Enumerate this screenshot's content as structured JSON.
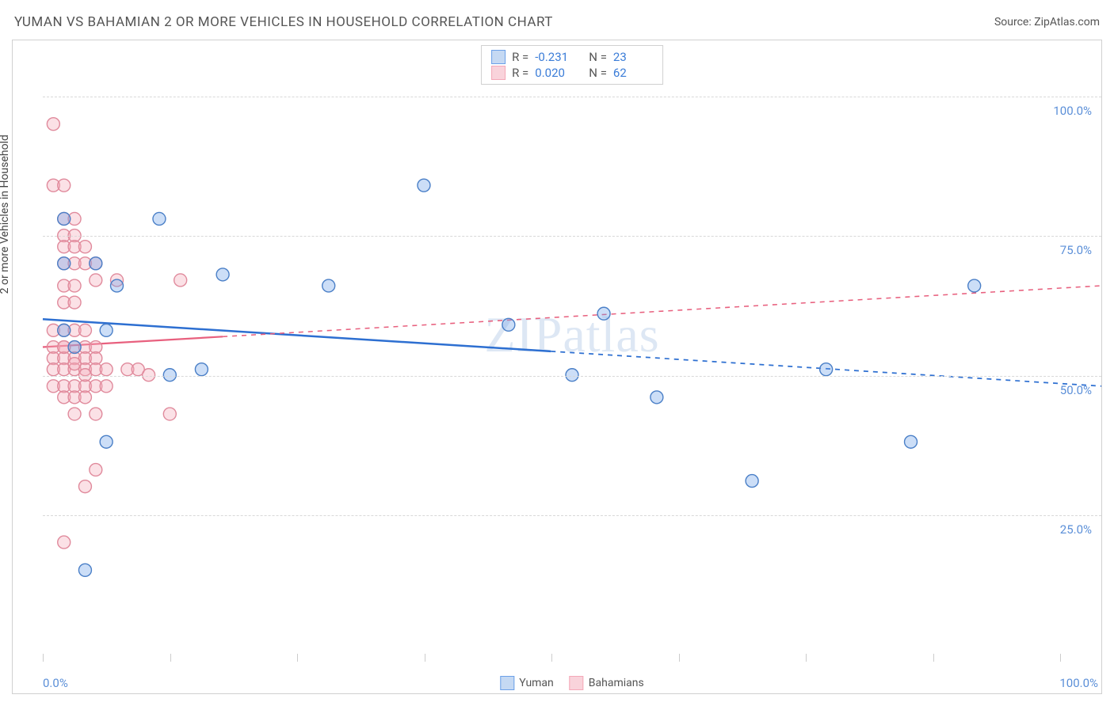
{
  "title": "YUMAN VS BAHAMIAN 2 OR MORE VEHICLES IN HOUSEHOLD CORRELATION CHART",
  "source": "Source: ZipAtlas.com",
  "watermark": "ZIPatlas",
  "y_axis_label": "2 or more Vehicles in Household",
  "chart": {
    "type": "scatter",
    "background_color": "#ffffff",
    "grid_color": "#d8d8d8",
    "border_color": "#d0d0d0",
    "xlim": [
      0,
      100
    ],
    "ylim": [
      0,
      110
    ],
    "x_ticks": [
      0,
      12,
      24,
      36,
      48,
      60,
      72,
      84,
      96
    ],
    "x_tick_labels": {
      "0": "0.0%",
      "100": "100.0%"
    },
    "y_gridlines": [
      25,
      50,
      75,
      100
    ],
    "y_tick_labels": {
      "25": "25.0%",
      "50": "50.0%",
      "75": "75.0%",
      "100": "100.0%"
    },
    "axis_label_color": "#5b8fd8",
    "axis_label_fontsize": 15,
    "marker_radius": 8,
    "marker_stroke_width": 1.4,
    "marker_fill_opacity": 0.35,
    "series": [
      {
        "name": "Yuman",
        "color": "#6ca0e8",
        "stroke": "#4a7fc7",
        "regression": {
          "x1": 0,
          "y1": 60,
          "x2": 100,
          "y2": 48,
          "solid_until": 48,
          "line_color": "#2d6fd1",
          "line_width": 2.5
        },
        "points": [
          [
            2,
            78
          ],
          [
            2,
            70
          ],
          [
            2,
            58
          ],
          [
            5,
            70
          ],
          [
            6,
            38
          ],
          [
            7,
            66
          ],
          [
            11,
            78
          ],
          [
            12,
            50
          ],
          [
            15,
            51
          ],
          [
            17,
            68
          ],
          [
            27,
            66
          ],
          [
            36,
            84
          ],
          [
            44,
            59
          ],
          [
            50,
            50
          ],
          [
            53,
            61
          ],
          [
            58,
            46
          ],
          [
            67,
            31
          ],
          [
            74,
            51
          ],
          [
            82,
            38
          ],
          [
            88,
            66
          ],
          [
            4,
            15
          ],
          [
            6,
            58
          ],
          [
            3,
            55
          ]
        ]
      },
      {
        "name": "Bahamians",
        "color": "#f4a8b8",
        "stroke": "#e08a9c",
        "regression": {
          "x1": 0,
          "y1": 55,
          "x2": 100,
          "y2": 66,
          "solid_until": 17,
          "line_color": "#e8607e",
          "line_width": 2.2
        },
        "points": [
          [
            1,
            95
          ],
          [
            1,
            84
          ],
          [
            2,
            84
          ],
          [
            2,
            78
          ],
          [
            3,
            78
          ],
          [
            2,
            75
          ],
          [
            3,
            75
          ],
          [
            2,
            73
          ],
          [
            3,
            73
          ],
          [
            4,
            73
          ],
          [
            2,
            70
          ],
          [
            3,
            70
          ],
          [
            4,
            70
          ],
          [
            5,
            70
          ],
          [
            2,
            66
          ],
          [
            3,
            66
          ],
          [
            2,
            63
          ],
          [
            3,
            63
          ],
          [
            5,
            67
          ],
          [
            7,
            67
          ],
          [
            13,
            67
          ],
          [
            1,
            58
          ],
          [
            2,
            58
          ],
          [
            3,
            58
          ],
          [
            4,
            58
          ],
          [
            1,
            55
          ],
          [
            2,
            55
          ],
          [
            3,
            55
          ],
          [
            4,
            55
          ],
          [
            5,
            55
          ],
          [
            1,
            53
          ],
          [
            2,
            53
          ],
          [
            3,
            53
          ],
          [
            4,
            53
          ],
          [
            5,
            53
          ],
          [
            1,
            51
          ],
          [
            2,
            51
          ],
          [
            3,
            51
          ],
          [
            4,
            51
          ],
          [
            5,
            51
          ],
          [
            6,
            51
          ],
          [
            8,
            51
          ],
          [
            1,
            48
          ],
          [
            2,
            48
          ],
          [
            3,
            48
          ],
          [
            4,
            48
          ],
          [
            5,
            48
          ],
          [
            6,
            48
          ],
          [
            9,
            51
          ],
          [
            2,
            46
          ],
          [
            3,
            46
          ],
          [
            4,
            46
          ],
          [
            10,
            50
          ],
          [
            3,
            43
          ],
          [
            5,
            43
          ],
          [
            12,
            43
          ],
          [
            4,
            30
          ],
          [
            5,
            33
          ],
          [
            2,
            20
          ],
          [
            2,
            55
          ],
          [
            3,
            52
          ],
          [
            4,
            50
          ]
        ]
      }
    ],
    "stats_box": {
      "rows": [
        {
          "swatch_fill": "#c5d9f3",
          "swatch_border": "#6ca0e8",
          "r_label": "R =",
          "r_value": "-0.231",
          "n_label": "N =",
          "n_value": "23"
        },
        {
          "swatch_fill": "#f9d3db",
          "swatch_border": "#f4a8b8",
          "r_label": "R =",
          "r_value": "0.020",
          "n_label": "N =",
          "n_value": "62"
        }
      ]
    },
    "bottom_legend": [
      {
        "label": "Yuman",
        "fill": "#c5d9f3",
        "border": "#6ca0e8"
      },
      {
        "label": "Bahamians",
        "fill": "#f9d3db",
        "border": "#f4a8b8"
      }
    ]
  }
}
